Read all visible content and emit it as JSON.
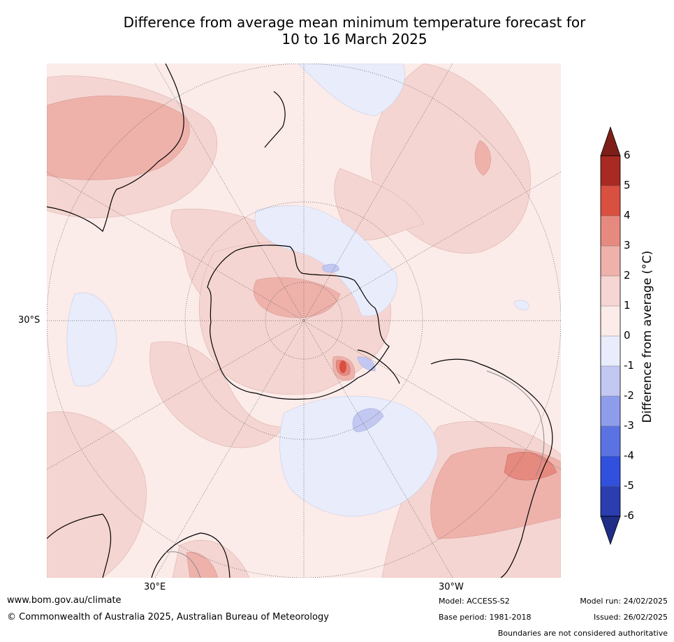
{
  "title": {
    "line1": "Difference from average mean minimum temperature forecast for",
    "line2": "10 to 16 March 2025"
  },
  "map": {
    "projection": "south-polar-stereographic",
    "lat_label": "30°S",
    "lon_labels": [
      "30°E",
      "30°W"
    ]
  },
  "colorbar": {
    "title": "Difference from average (°C)",
    "ticks": [
      "6",
      "5",
      "4",
      "3",
      "2",
      "1",
      "0",
      "-1",
      "-2",
      "-3",
      "-4",
      "-5",
      "-6"
    ],
    "colors_top_to_bottom": [
      "#a92a22",
      "#d94f40",
      "#e68a80",
      "#eeb2ab",
      "#f6d6d2",
      "#fbebe9",
      "#e9ecfa",
      "#c2c8f1",
      "#8e9deb",
      "#5b73e2",
      "#3050dd",
      "#2a3eb0"
    ],
    "extend_high_color": "#7d1f18",
    "extend_low_color": "#1f2d86"
  },
  "footer": {
    "website": "www.bom.gov.au/climate",
    "copyright": "© Commonwealth of Australia 2025, Australian Bureau of Meteorology",
    "model": "Model: ACCESS-S2",
    "base_period": "Base period: 1981-2018",
    "model_run": "Model run: 24/02/2025",
    "issued": "Issued: 26/02/2025",
    "disclaimer": "Boundaries are not considered authoritative"
  }
}
